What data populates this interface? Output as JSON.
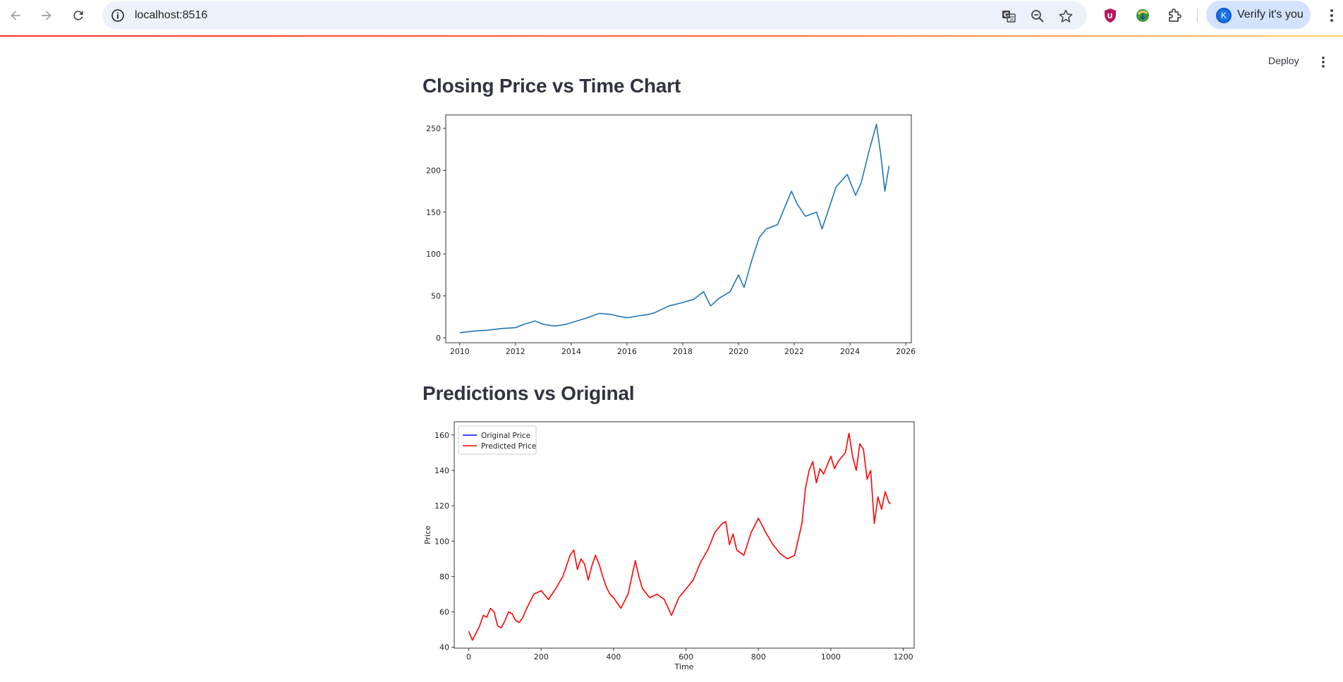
{
  "browser": {
    "url": "localhost:8516",
    "profile_initial": "K",
    "profile_label": "Verify it's you",
    "icons": [
      "back-arrow-icon",
      "forward-arrow-icon",
      "reload-icon",
      "site-info-icon",
      "translate-icon",
      "zoom-out-icon",
      "bookmark-star-icon",
      "ublock-extension-icon",
      "download-extension-icon",
      "extensions-puzzle-icon",
      "browser-menu-icon"
    ]
  },
  "app": {
    "deploy_label": "Deploy"
  },
  "sections": {
    "closing": {
      "title": "Closing Price vs Time Chart"
    },
    "predictions": {
      "title": "Predictions vs Original"
    }
  },
  "chart_data": [
    {
      "type": "line",
      "title": "",
      "xlabel": "",
      "ylabel": "",
      "xlim": [
        2009.5,
        2026.2
      ],
      "ylim": [
        -6,
        266
      ],
      "x_ticks": [
        "2010",
        "2012",
        "2014",
        "2016",
        "2018",
        "2020",
        "2022",
        "2024",
        "2026"
      ],
      "y_ticks": [
        "0",
        "50",
        "100",
        "150",
        "200",
        "250"
      ],
      "grid": false,
      "color": "#1f77b4",
      "series": [
        {
          "x": [
            2010.0,
            2010.5,
            2011.0,
            2011.5,
            2012.0,
            2012.3,
            2012.7,
            2013.0,
            2013.4,
            2013.8,
            2014.0,
            2014.5,
            2015.0,
            2015.4,
            2015.8,
            2016.0,
            2016.4,
            2016.8,
            2017.0,
            2017.5,
            2018.0,
            2018.4,
            2018.75,
            2019.0,
            2019.3,
            2019.7,
            2020.0,
            2020.2,
            2020.5,
            2020.75,
            2021.0,
            2021.4,
            2021.9,
            2022.1,
            2022.4,
            2022.8,
            2023.0,
            2023.5,
            2023.9,
            2024.2,
            2024.4,
            2024.7,
            2024.95,
            2025.1,
            2025.25,
            2025.4
          ],
          "y": [
            6,
            8,
            9,
            11,
            12,
            16,
            20,
            16,
            14,
            16,
            18,
            23,
            29,
            28,
            25,
            24,
            26,
            28,
            30,
            38,
            42,
            46,
            55,
            38,
            47,
            55,
            75,
            60,
            95,
            120,
            130,
            135,
            175,
            160,
            145,
            150,
            130,
            180,
            195,
            170,
            185,
            225,
            255,
            220,
            175,
            205
          ]
        }
      ]
    },
    {
      "type": "line",
      "title": "",
      "xlabel": "Time",
      "ylabel": "Price",
      "xlim": [
        -40,
        1230
      ],
      "ylim": [
        39.5,
        167.5
      ],
      "x_ticks": [
        "0",
        "200",
        "400",
        "600",
        "800",
        "1000",
        "1200"
      ],
      "y_ticks": [
        "40",
        "60",
        "80",
        "100",
        "120",
        "140",
        "160"
      ],
      "grid": false,
      "legend": "top-left",
      "series": [
        {
          "name": "Original Price",
          "color": "#0000ff",
          "x": [],
          "y": []
        },
        {
          "name": "Predicted Price",
          "color": "#ff0000",
          "x": [
            0,
            10,
            20,
            30,
            40,
            50,
            60,
            70,
            80,
            90,
            100,
            110,
            120,
            130,
            140,
            150,
            160,
            170,
            180,
            200,
            220,
            240,
            260,
            280,
            290,
            300,
            310,
            320,
            330,
            340,
            350,
            360,
            370,
            380,
            390,
            400,
            420,
            440,
            460,
            470,
            480,
            500,
            520,
            540,
            560,
            580,
            600,
            620,
            640,
            660,
            680,
            700,
            710,
            720,
            730,
            740,
            760,
            780,
            800,
            820,
            840,
            860,
            880,
            900,
            920,
            930,
            940,
            950,
            960,
            970,
            980,
            990,
            1000,
            1010,
            1020,
            1040,
            1050,
            1060,
            1070,
            1080,
            1090,
            1100,
            1110,
            1120,
            1130,
            1140,
            1150,
            1160,
            1165
          ],
          "y": [
            49,
            44,
            48,
            52,
            58,
            57,
            62,
            60,
            52,
            51,
            55,
            60,
            59,
            55,
            54,
            57,
            62,
            66,
            70,
            72,
            67,
            73,
            80,
            92,
            95,
            84,
            90,
            87,
            78,
            86,
            92,
            87,
            80,
            74,
            70,
            68,
            62,
            70,
            89,
            80,
            73,
            68,
            70,
            67,
            58,
            68,
            73,
            78,
            88,
            95,
            105,
            110,
            111,
            98,
            104,
            95,
            92,
            105,
            113,
            105,
            98,
            93,
            90,
            92,
            110,
            130,
            140,
            145,
            133,
            141,
            138,
            143,
            148,
            141,
            145,
            150,
            161,
            148,
            140,
            155,
            152,
            135,
            140,
            110,
            125,
            118,
            128,
            122,
            121
          ]
        }
      ]
    }
  ]
}
